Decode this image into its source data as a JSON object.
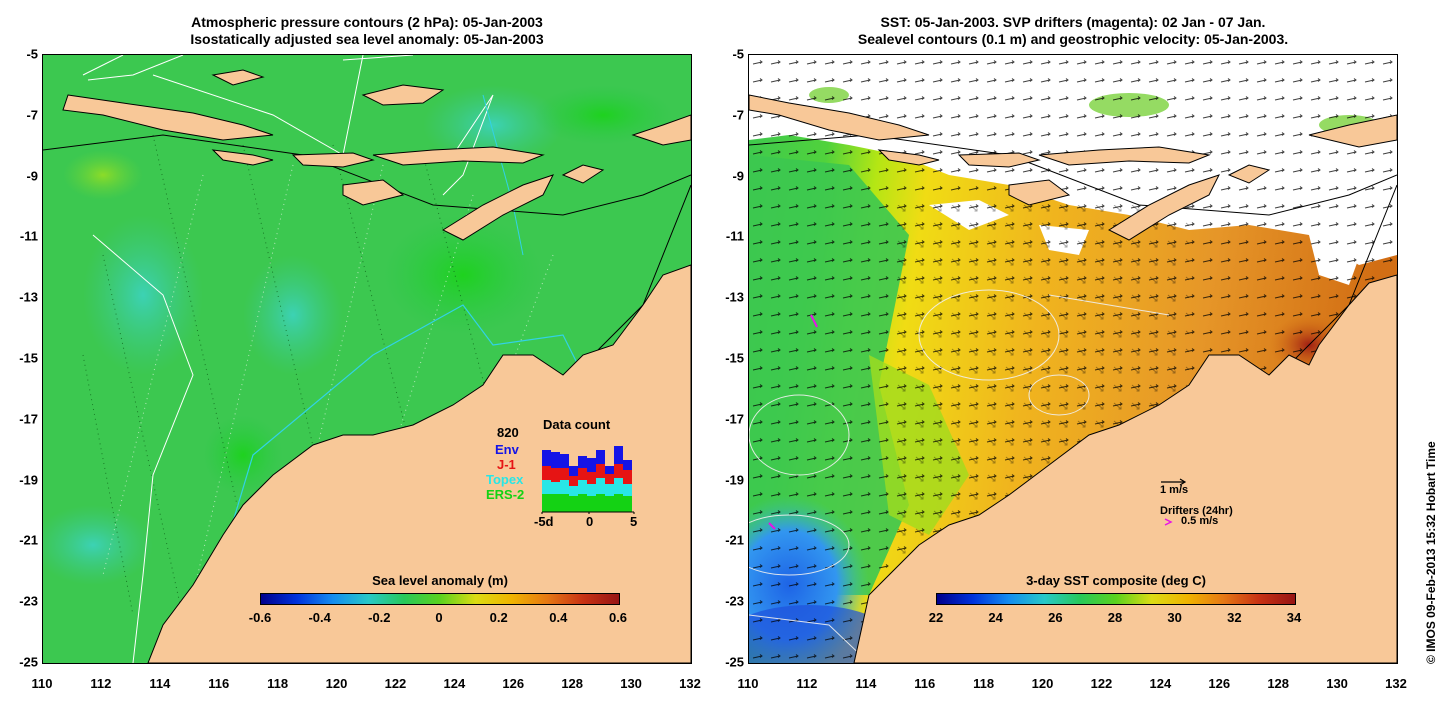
{
  "left_panel": {
    "title_line1": "Atmospheric pressure contours (2 hPa): 05-Jan-2003",
    "title_line2": "Isostatically adjusted sea level anomaly: 05-Jan-2003",
    "colorbar": {
      "title": "Sea level anomaly (m)",
      "labels": [
        "-0.6",
        "-0.4",
        "-0.2",
        "0",
        "0.2",
        "0.4",
        "0.6"
      ],
      "range": [
        -0.6,
        0.6
      ]
    },
    "data_count": {
      "title": "Data count",
      "max_label": "820",
      "satellites": [
        {
          "name": "Env",
          "color": "#1414e6"
        },
        {
          "name": "J-1",
          "color": "#e61414"
        },
        {
          "name": "Topex",
          "color": "#28e6e6"
        },
        {
          "name": "ERS-2",
          "color": "#14d214"
        }
      ],
      "axis_labels": [
        "-5d",
        "0",
        "5"
      ],
      "bars": [
        {
          "ers2": 18,
          "topex": 14,
          "j1": 14,
          "env": 16
        },
        {
          "ers2": 18,
          "topex": 12,
          "j1": 14,
          "env": 16
        },
        {
          "ers2": 18,
          "topex": 14,
          "j1": 12,
          "env": 14
        },
        {
          "ers2": 16,
          "topex": 10,
          "j1": 10,
          "env": 10
        },
        {
          "ers2": 18,
          "topex": 14,
          "j1": 12,
          "env": 12
        },
        {
          "ers2": 16,
          "topex": 12,
          "j1": 12,
          "env": 14
        },
        {
          "ers2": 18,
          "topex": 16,
          "j1": 14,
          "env": 14
        },
        {
          "ers2": 16,
          "topex": 12,
          "j1": 10,
          "env": 8
        },
        {
          "ers2": 18,
          "topex": 16,
          "j1": 14,
          "env": 18
        },
        {
          "ers2": 16,
          "topex": 12,
          "j1": 14,
          "env": 10
        }
      ]
    }
  },
  "right_panel": {
    "title_line1": "SST: 05-Jan-2003. SVP drifters (magenta): 02 Jan - 07 Jan.",
    "title_line2": "Sealevel contours (0.1 m) and geostrophic velocity: 05-Jan-2003.",
    "colorbar": {
      "title": "3-day SST composite (deg C)",
      "labels": [
        "22",
        "24",
        "26",
        "28",
        "30",
        "32",
        "34"
      ],
      "range": [
        22,
        34
      ]
    },
    "velocity_legend": "1 m/s",
    "drifter_legend_title": "Drifters (24hr)",
    "drifter_legend_value": "0.5 m/s"
  },
  "axes": {
    "x_ticks": [
      "110",
      "112",
      "114",
      "116",
      "118",
      "120",
      "122",
      "124",
      "126",
      "128",
      "130",
      "132"
    ],
    "y_ticks": [
      "-5",
      "-7",
      "-9",
      "-11",
      "-13",
      "-15",
      "-17",
      "-19",
      "-21",
      "-23",
      "-25"
    ]
  },
  "copyright": "© IMOS 09-Feb-2013 15:32 Hobart Time",
  "colors": {
    "land": "#f8c898",
    "sla_ocean": "#3cc850",
    "coast": "#000000"
  }
}
